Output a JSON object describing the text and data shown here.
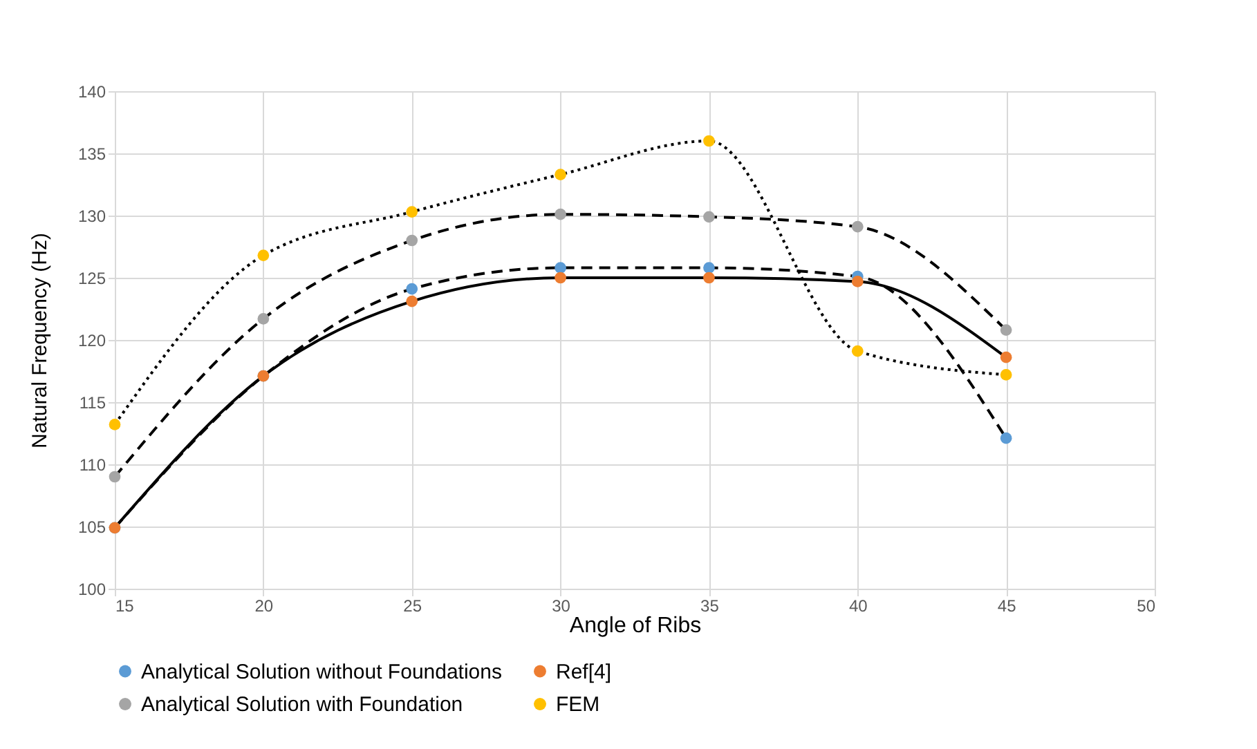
{
  "chart_data": {
    "type": "line",
    "xlabel": "Angle of Ribs",
    "ylabel": "Natural Frequency (Hz)",
    "x": [
      15,
      20,
      25,
      30,
      35,
      40,
      45
    ],
    "series": [
      {
        "name": "Analytical Solution without Foundations",
        "color": "#5b9bd5",
        "line_style": "dashed",
        "values": [
          104.9,
          117.1,
          124.1,
          125.8,
          125.8,
          125.1,
          112.1
        ]
      },
      {
        "name": "Ref[4]",
        "color": "#ed7d31",
        "line_style": "solid",
        "values": [
          104.9,
          117.1,
          123.1,
          125.0,
          125.0,
          124.7,
          118.6
        ]
      },
      {
        "name": "Analytical Solution with Foundation",
        "color": "#a5a5a5",
        "line_style": "dashed",
        "values": [
          109.0,
          121.7,
          128.0,
          130.1,
          129.9,
          129.1,
          120.8
        ]
      },
      {
        "name": "FEM",
        "color": "#ffc000",
        "line_style": "dotted",
        "values": [
          113.2,
          126.8,
          130.3,
          133.3,
          136.0,
          119.1,
          117.2
        ]
      }
    ],
    "xlim": [
      15,
      50
    ],
    "xticks": [
      15,
      20,
      25,
      30,
      35,
      40,
      45,
      50
    ],
    "ylim": [
      100,
      140
    ],
    "yticks": [
      100,
      105,
      110,
      115,
      120,
      125,
      130,
      135,
      140
    ],
    "grid": true,
    "legend": "bottom",
    "marker": "circle"
  }
}
